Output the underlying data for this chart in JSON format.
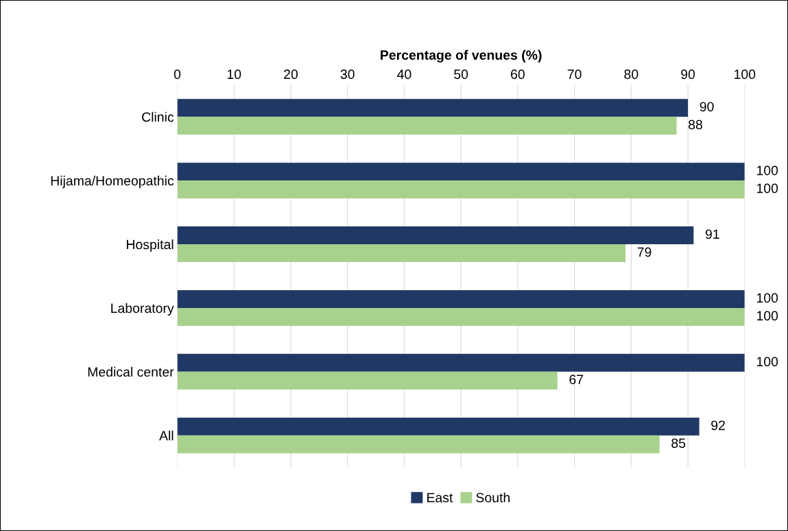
{
  "chart_data": {
    "type": "bar",
    "orientation": "horizontal",
    "xlabel": "Percentage of venues (%)",
    "categories": [
      "Clinic",
      "Hijama/Homeopathic",
      "Hospital",
      "Laboratory",
      "Medical center",
      "All"
    ],
    "series": [
      {
        "name": "East",
        "color": "#203864",
        "values": [
          90,
          100,
          91,
          100,
          100,
          92
        ]
      },
      {
        "name": "South",
        "color": "#a9d18e",
        "values": [
          88,
          100,
          79,
          100,
          67,
          85
        ]
      }
    ],
    "xlim": [
      0,
      100
    ],
    "xticks": [
      0,
      10,
      20,
      30,
      40,
      50,
      60,
      70,
      80,
      90,
      100
    ],
    "grid": "x",
    "legend": "bottom",
    "data_labels": true
  }
}
